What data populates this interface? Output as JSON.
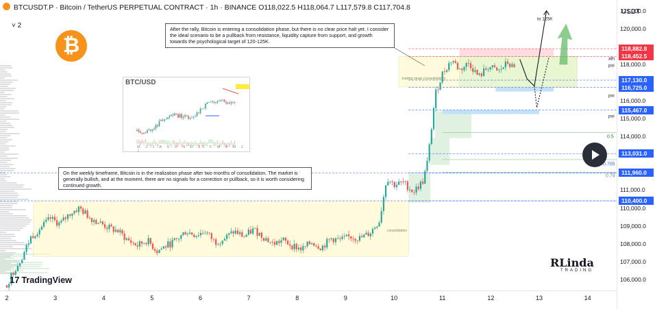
{
  "header": {
    "symbol": "BTCUSDT.P",
    "name": "Bitcoin / TetherUS PERPETUAL CONTRACT",
    "interval": "1h",
    "exchange": "BINANCE",
    "title_text": "BTCUSDT.P · Bitcoin / TetherUS PERPETUAL CONTRACT · 1h · BINANCE",
    "ohlc_text": "O118,022.5 H118,064.7 L117,579.8 C117,704.8",
    "collapse_label": "˅ 2",
    "currency": "USDT"
  },
  "notes": {
    "top": "After the rally, Bitcoin is entering a consolidation phase, but there is no clear price halt yet. I consider the ideal scenario to be a pullback from resistance, liquidity capture from support, and growth towards the psychological target of 120-125K.",
    "bottom": "On the weekly timeframe, Bitcoin is in the realization phase after two months of consolidation. The market is generally bullish, and at the moment, there are no signals for a correction or pullback, so it is worth considering continued growth."
  },
  "inset": {
    "title": "BTC/USD",
    "months": "M J J A S O N D 25 F M A M J J"
  },
  "annotations": {
    "target": "to 125K",
    "trading_range": "trading range (consolidation)",
    "consolidation": "consolidation",
    "ath": "ath",
    "poi": "poi",
    "fib_05": "0.5",
    "fib_0705": "0.705",
    "fib_079": "0.79"
  },
  "branding": {
    "tradingview": "TradingView",
    "tv_mark": "17",
    "author_logo": "RLinda",
    "author_sub": "TRADING"
  },
  "colors": {
    "up": "#26a69a",
    "down": "#ef5350",
    "badge_red": "#f23645",
    "badge_blue": "#2962ff",
    "zone_green": "#d7f2c9",
    "zone_yellow": "#fff9c4",
    "bitcoin": "#f7931a"
  },
  "chart_data": {
    "type": "candlestick",
    "ylim": [
      105400,
      121600
    ],
    "y_ticks": [
      106000,
      107000,
      108000,
      109000,
      110000,
      111000,
      112000,
      113000,
      114000,
      115000,
      116000,
      117000,
      118000,
      119000,
      120000,
      121000
    ],
    "y_tick_labels": [
      "106,000.0",
      "107,000.0",
      "108,000.0",
      "109,000.0",
      "110,000.0",
      "111,000.0",
      "112,000.0",
      "113,000.0",
      "114,000.0",
      "115,000.0",
      "116,000.0",
      "117,000.0",
      "118,000.0",
      "119,000.0",
      "120,000.0",
      "121,000.0"
    ],
    "x_labels": [
      "2",
      "3",
      "4",
      "5",
      "6",
      "7",
      "8",
      "9",
      "10",
      "11",
      "12",
      "13",
      "14"
    ],
    "xlim": [
      2.0,
      14.6
    ],
    "close_path": [
      [
        2.0,
        105700
      ],
      [
        2.1,
        106300
      ],
      [
        2.3,
        107200
      ],
      [
        2.5,
        108400
      ],
      [
        2.7,
        108900
      ],
      [
        2.9,
        109400
      ],
      [
        3.1,
        109100
      ],
      [
        3.3,
        109700
      ],
      [
        3.5,
        110000
      ],
      [
        3.7,
        109500
      ],
      [
        3.9,
        109200
      ],
      [
        4.1,
        108900
      ],
      [
        4.3,
        108700
      ],
      [
        4.5,
        108200
      ],
      [
        4.7,
        107900
      ],
      [
        4.9,
        108200
      ],
      [
        5.1,
        107600
      ],
      [
        5.3,
        107900
      ],
      [
        5.5,
        108200
      ],
      [
        5.7,
        108700
      ],
      [
        5.9,
        108500
      ],
      [
        6.1,
        108700
      ],
      [
        6.3,
        108100
      ],
      [
        6.5,
        108300
      ],
      [
        6.7,
        108700
      ],
      [
        6.9,
        108400
      ],
      [
        7.1,
        108800
      ],
      [
        7.3,
        108400
      ],
      [
        7.5,
        108000
      ],
      [
        7.7,
        108200
      ],
      [
        7.9,
        107900
      ],
      [
        8.1,
        107700
      ],
      [
        8.3,
        108100
      ],
      [
        8.5,
        107800
      ],
      [
        8.7,
        108300
      ],
      [
        8.9,
        108200
      ],
      [
        9.1,
        108400
      ],
      [
        9.3,
        108300
      ],
      [
        9.5,
        108600
      ],
      [
        9.7,
        109300
      ],
      [
        9.85,
        111700
      ],
      [
        10.0,
        111300
      ],
      [
        10.2,
        111400
      ],
      [
        10.4,
        110900
      ],
      [
        10.6,
        111500
      ],
      [
        10.7,
        112700
      ],
      [
        10.85,
        116300
      ],
      [
        11.0,
        117500
      ],
      [
        11.2,
        118300
      ],
      [
        11.35,
        117700
      ],
      [
        11.55,
        118100
      ],
      [
        11.75,
        117300
      ],
      [
        11.95,
        117900
      ],
      [
        12.15,
        117600
      ],
      [
        12.35,
        118100
      ],
      [
        12.5,
        117700
      ]
    ],
    "levels": [
      {
        "label": "ath",
        "value": 118882.8,
        "text": "118,882.8",
        "color": "#f23645"
      },
      {
        "label": "poi",
        "value": 118452.5,
        "text": "118,452.5",
        "color": "#f23645"
      },
      {
        "value": 117130.0,
        "text": "117,130.0",
        "color": "#2962ff"
      },
      {
        "label": "poi",
        "value": 116725.0,
        "text": "116,725.0",
        "color": "#2962ff"
      },
      {
        "label": "poi",
        "value": 115467.0,
        "text": "115,467.0",
        "color": "#2962ff"
      },
      {
        "label": "0.705",
        "value": 113031.0,
        "text": "113,031.0",
        "color": "#2962ff"
      },
      {
        "label": "0.79",
        "value": 111960.0,
        "text": "111,960.0",
        "color": "#2962ff"
      },
      {
        "value": 110400.0,
        "text": "110,400.0",
        "color": "#2962ff"
      }
    ],
    "fib_levels": [
      {
        "label": "0.5",
        "value": 114200
      },
      {
        "label": "0.705",
        "value": 112700
      },
      {
        "label": "0.79",
        "value": 112000
      }
    ],
    "zones": [
      {
        "name": "consolidation",
        "x0": 2.55,
        "x1": 10.3,
        "y0": 107300,
        "y1": 110400,
        "color": "#fff9c4"
      },
      {
        "name": "trading range",
        "x0": 10.1,
        "x1": 13.78,
        "y0": 116750,
        "y1": 118450,
        "color": "#fff9c4"
      },
      {
        "name": "green-rect",
        "x0": 11.35,
        "x1": 13.78,
        "y0": 116750,
        "y1": 118450,
        "color": "#d7f2c9"
      }
    ],
    "projection_main": [
      [
        12.6,
        118300
      ],
      [
        12.75,
        117200
      ],
      [
        12.9,
        116800
      ],
      [
        13.15,
        121000
      ]
    ],
    "projection_alt": [
      [
        12.9,
        116800
      ],
      [
        12.95,
        115600
      ],
      [
        13.2,
        118400
      ]
    ]
  }
}
